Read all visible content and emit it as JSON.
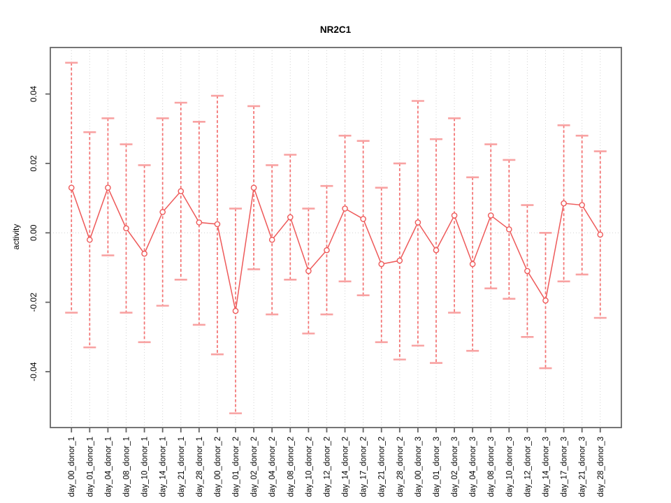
{
  "page": {
    "background": "#ffffff"
  },
  "chart_data": {
    "type": "line",
    "subtype": "points-with-error-bars",
    "title": "NR2C1",
    "ylabel": "activity",
    "xlabel": "",
    "legend": "none",
    "grid": "vertical dotted gridline at every category; dotted horizontal line at y=0",
    "categories": [
      "day_00_donor_1",
      "day_01_donor_1",
      "day_04_donor_1",
      "day_08_donor_1",
      "day_10_donor_1",
      "day_14_donor_1",
      "day_21_donor_1",
      "day_28_donor_1",
      "day_00_donor_2",
      "day_01_donor_2",
      "day_02_donor_2",
      "day_04_donor_2",
      "day_08_donor_2",
      "day_10_donor_2",
      "day_12_donor_2",
      "day_14_donor_2",
      "day_17_donor_2",
      "day_21_donor_2",
      "day_28_donor_2",
      "day_00_donor_3",
      "day_01_donor_3",
      "day_02_donor_3",
      "day_04_donor_3",
      "day_08_donor_3",
      "day_10_donor_3",
      "day_12_donor_3",
      "day_14_donor_3",
      "day_17_donor_3",
      "day_21_donor_3",
      "day_28_donor_3"
    ],
    "series": [
      {
        "name": "activity",
        "centers": [
          0.013,
          -0.002,
          0.013,
          0.0013,
          -0.006,
          0.006,
          0.012,
          0.003,
          0.0025,
          -0.0225,
          0.013,
          -0.002,
          0.0045,
          -0.011,
          -0.005,
          0.007,
          0.004,
          -0.009,
          -0.008,
          0.003,
          -0.005,
          0.005,
          -0.009,
          0.005,
          0.001,
          -0.011,
          -0.0195,
          0.0085,
          0.008,
          -0.0005
        ],
        "upper": [
          0.049,
          0.029,
          0.033,
          0.0255,
          0.0195,
          0.033,
          0.0375,
          0.032,
          0.0395,
          0.007,
          0.0365,
          0.0195,
          0.0225,
          0.007,
          0.0135,
          0.028,
          0.0265,
          0.013,
          0.02,
          0.038,
          0.027,
          0.033,
          0.016,
          0.0255,
          0.021,
          0.008,
          0.0,
          0.031,
          0.028,
          0.0235
        ],
        "lower": [
          -0.023,
          -0.033,
          -0.0065,
          -0.023,
          -0.0315,
          -0.021,
          -0.0135,
          -0.0265,
          -0.035,
          -0.052,
          -0.0105,
          -0.0235,
          -0.0135,
          -0.029,
          -0.0235,
          -0.014,
          -0.018,
          -0.0315,
          -0.0365,
          -0.0325,
          -0.0375,
          -0.023,
          -0.034,
          -0.016,
          -0.019,
          -0.03,
          -0.039,
          -0.014,
          -0.012,
          -0.0245
        ]
      }
    ],
    "yticks": [
      0.04,
      0.02,
      0,
      -0.02,
      -0.04
    ],
    "ytick_labels": [
      "0.04",
      "0.02",
      "0.00",
      "-0.02",
      "-0.04"
    ],
    "ylim": [
      -0.0561,
      0.0534
    ],
    "hline_y": 0,
    "colors": {
      "error_bar": "#f37070",
      "error_cap": "#f8a2a2",
      "series_line": "#ee5a5a",
      "point_stroke": "#ee5a5a",
      "point_fill": "#ffffff",
      "gridline": "#d2d2d2",
      "axis": "#666666",
      "text": "#000000"
    }
  }
}
